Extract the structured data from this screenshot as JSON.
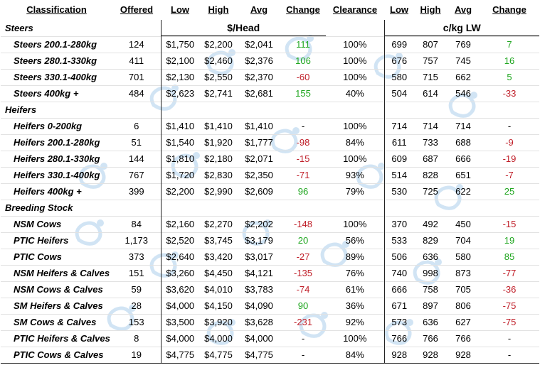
{
  "headers": {
    "classification": "Classification",
    "offered": "Offered",
    "low": "Low",
    "high": "High",
    "avg": "Avg",
    "change": "Change",
    "clearance": "Clearance",
    "low2": "Low",
    "high2": "High",
    "avg2": "Avg",
    "change2": "Change"
  },
  "units": {
    "head": "$/Head",
    "lw": "c/kg LW"
  },
  "sections": [
    {
      "name": "Steers",
      "rows": [
        {
          "label": "Steers 200.1-280kg",
          "offered": "124",
          "low": "$1,750",
          "high": "$2,200",
          "avg": "$2,041",
          "change": "111",
          "change_sign": "pos",
          "clearance": "100%",
          "low2": "699",
          "high2": "807",
          "avg2": "769",
          "change2": "7",
          "change2_sign": "pos"
        },
        {
          "label": "Steers 280.1-330kg",
          "offered": "411",
          "low": "$2,100",
          "high": "$2,460",
          "avg": "$2,376",
          "change": "106",
          "change_sign": "pos",
          "clearance": "100%",
          "low2": "676",
          "high2": "757",
          "avg2": "745",
          "change2": "16",
          "change2_sign": "pos"
        },
        {
          "label": "Steers 330.1-400kg",
          "offered": "701",
          "low": "$2,130",
          "high": "$2,550",
          "avg": "$2,370",
          "change": "-60",
          "change_sign": "neg",
          "clearance": "100%",
          "low2": "580",
          "high2": "715",
          "avg2": "662",
          "change2": "5",
          "change2_sign": "pos"
        },
        {
          "label": "Steers 400kg +",
          "offered": "484",
          "low": "$2,623",
          "high": "$2,741",
          "avg": "$2,681",
          "change": "155",
          "change_sign": "pos",
          "clearance": "40%",
          "low2": "504",
          "high2": "614",
          "avg2": "546",
          "change2": "-33",
          "change2_sign": "neg"
        }
      ]
    },
    {
      "name": "Heifers",
      "rows": [
        {
          "label": "Heifers 0-200kg",
          "offered": "6",
          "low": "$1,410",
          "high": "$1,410",
          "avg": "$1,410",
          "change": "-",
          "change_sign": "zero",
          "clearance": "100%",
          "low2": "714",
          "high2": "714",
          "avg2": "714",
          "change2": "-",
          "change2_sign": "zero"
        },
        {
          "label": "Heifers 200.1-280kg",
          "offered": "51",
          "low": "$1,540",
          "high": "$1,920",
          "avg": "$1,777",
          "change": "-98",
          "change_sign": "neg",
          "clearance": "84%",
          "low2": "611",
          "high2": "733",
          "avg2": "688",
          "change2": "-9",
          "change2_sign": "neg"
        },
        {
          "label": "Heifers 280.1-330kg",
          "offered": "144",
          "low": "$1,810",
          "high": "$2,180",
          "avg": "$2,071",
          "change": "-15",
          "change_sign": "neg",
          "clearance": "100%",
          "low2": "609",
          "high2": "687",
          "avg2": "666",
          "change2": "-19",
          "change2_sign": "neg"
        },
        {
          "label": "Heifers 330.1-400kg",
          "offered": "767",
          "low": "$1,720",
          "high": "$2,830",
          "avg": "$2,350",
          "change": "-71",
          "change_sign": "neg",
          "clearance": "93%",
          "low2": "514",
          "high2": "828",
          "avg2": "651",
          "change2": "-7",
          "change2_sign": "neg"
        },
        {
          "label": "Heifers 400kg +",
          "offered": "399",
          "low": "$2,200",
          "high": "$2,990",
          "avg": "$2,609",
          "change": "96",
          "change_sign": "pos",
          "clearance": "79%",
          "low2": "530",
          "high2": "725",
          "avg2": "622",
          "change2": "25",
          "change2_sign": "pos"
        }
      ]
    },
    {
      "name": "Breeding Stock",
      "rows": [
        {
          "label": "NSM Cows",
          "offered": "84",
          "low": "$2,160",
          "high": "$2,270",
          "avg": "$2,202",
          "change": "-148",
          "change_sign": "neg",
          "clearance": "100%",
          "low2": "370",
          "high2": "492",
          "avg2": "450",
          "change2": "-15",
          "change2_sign": "neg"
        },
        {
          "label": "PTIC Heifers",
          "offered": "1,173",
          "low": "$2,520",
          "high": "$3,745",
          "avg": "$3,179",
          "change": "20",
          "change_sign": "pos",
          "clearance": "56%",
          "low2": "533",
          "high2": "829",
          "avg2": "704",
          "change2": "19",
          "change2_sign": "pos"
        },
        {
          "label": "PTIC Cows",
          "offered": "373",
          "low": "$2,640",
          "high": "$3,420",
          "avg": "$3,017",
          "change": "-27",
          "change_sign": "neg",
          "clearance": "89%",
          "low2": "506",
          "high2": "636",
          "avg2": "580",
          "change2": "85",
          "change2_sign": "pos"
        },
        {
          "label": "NSM Heifers & Calves",
          "offered": "151",
          "low": "$3,260",
          "high": "$4,450",
          "avg": "$4,121",
          "change": "-135",
          "change_sign": "neg",
          "clearance": "76%",
          "low2": "740",
          "high2": "998",
          "avg2": "873",
          "change2": "-77",
          "change2_sign": "neg"
        },
        {
          "label": "NSM Cows & Calves",
          "offered": "59",
          "low": "$3,620",
          "high": "$4,010",
          "avg": "$3,783",
          "change": "-74",
          "change_sign": "neg",
          "clearance": "61%",
          "low2": "666",
          "high2": "758",
          "avg2": "705",
          "change2": "-36",
          "change2_sign": "neg"
        },
        {
          "label": "SM Heifers & Calves",
          "offered": "28",
          "low": "$4,000",
          "high": "$4,150",
          "avg": "$4,090",
          "change": "90",
          "change_sign": "pos",
          "clearance": "36%",
          "low2": "671",
          "high2": "897",
          "avg2": "806",
          "change2": "-75",
          "change2_sign": "neg"
        },
        {
          "label": "SM Cows & Calves",
          "offered": "153",
          "low": "$3,500",
          "high": "$3,920",
          "avg": "$3,628",
          "change": "-231",
          "change_sign": "neg",
          "clearance": "92%",
          "low2": "573",
          "high2": "636",
          "avg2": "627",
          "change2": "-75",
          "change2_sign": "neg"
        },
        {
          "label": "PTIC Heifers & Calves",
          "offered": "8",
          "low": "$4,000",
          "high": "$4,000",
          "avg": "$4,000",
          "change": "-",
          "change_sign": "zero",
          "clearance": "100%",
          "low2": "766",
          "high2": "766",
          "avg2": "766",
          "change2": "-",
          "change2_sign": "zero"
        },
        {
          "label": "PTIC Cows & Calves",
          "offered": "19",
          "low": "$4,775",
          "high": "$4,775",
          "avg": "$4,775",
          "change": "-",
          "change_sign": "zero",
          "clearance": "84%",
          "low2": "928",
          "high2": "928",
          "avg2": "928",
          "change2": "-",
          "change2_sign": "zero"
        }
      ]
    }
  ]
}
